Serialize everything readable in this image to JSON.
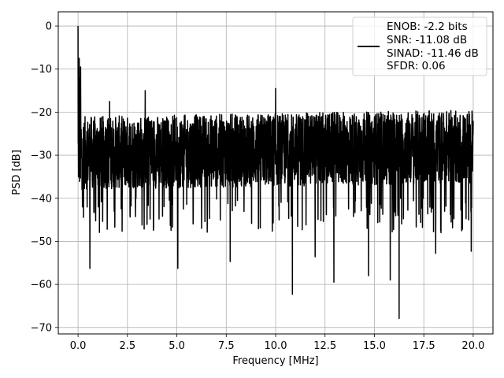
{
  "chart_data": {
    "type": "line",
    "title": "",
    "xlabel": "Frequency [MHz]",
    "ylabel": "PSD [dB]",
    "xlim": [
      -1.0,
      21.0
    ],
    "ylim": [
      -71.5,
      3.3
    ],
    "xticks": [
      0.0,
      2.5,
      5.0,
      7.5,
      10.0,
      12.5,
      15.0,
      17.5,
      20.0
    ],
    "xtick_labels": [
      "0.0",
      "2.5",
      "5.0",
      "7.5",
      "10.0",
      "12.5",
      "15.0",
      "17.5",
      "20.0"
    ],
    "yticks": [
      0,
      -10,
      -20,
      -30,
      -40,
      -50,
      -60,
      -70
    ],
    "ytick_labels": [
      "0",
      "−10",
      "−20",
      "−30",
      "−40",
      "−50",
      "−60",
      "−70"
    ],
    "grid": true,
    "legend_position": "top-right",
    "series": [
      {
        "name": "ENOB: -2.2 bits\nSNR: -11.08 dB\nSINAD: -11.46 dB\nSFDR: 0.06",
        "legend_lines": [
          "ENOB: -2.2 bits",
          "SNR: -11.08 dB",
          "SINAD: -11.46 dB",
          "SFDR: 0.06"
        ],
        "color": "#000000",
        "x_range": [
          0.0,
          20.0
        ],
        "noise_floor_band": [
          -38,
          -21
        ],
        "features": [
          {
            "x": 0.0,
            "y": 0.0
          },
          {
            "x": 0.03,
            "y": -15.5
          },
          {
            "x": 0.06,
            "y": -7.5
          },
          {
            "x": 0.1,
            "y": -12.0
          },
          {
            "x": 0.13,
            "y": -9.5
          },
          {
            "x": 0.2,
            "y": -38.0
          },
          {
            "x": 0.6,
            "y": -56.3
          },
          {
            "x": 1.6,
            "y": -17.5
          },
          {
            "x": 3.4,
            "y": -15.0
          },
          {
            "x": 5.05,
            "y": -56.3
          },
          {
            "x": 7.7,
            "y": -54.7
          },
          {
            "x": 10.0,
            "y": -14.5
          },
          {
            "x": 10.85,
            "y": -62.3
          },
          {
            "x": 12.0,
            "y": -53.6
          },
          {
            "x": 12.95,
            "y": -59.5
          },
          {
            "x": 14.7,
            "y": -58.0
          },
          {
            "x": 15.8,
            "y": -59.0
          },
          {
            "x": 16.25,
            "y": -67.9
          },
          {
            "x": 18.1,
            "y": -52.8
          },
          {
            "x": 19.9,
            "y": -52.3
          }
        ]
      }
    ]
  }
}
